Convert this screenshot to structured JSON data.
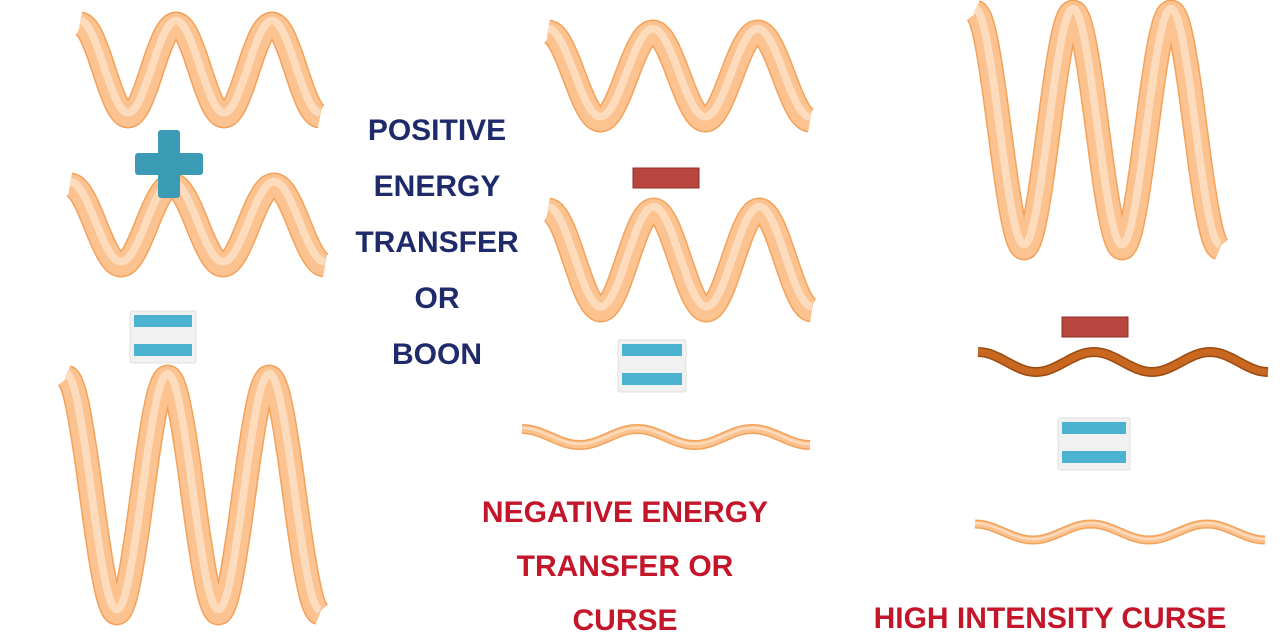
{
  "colors": {
    "wave_fill": "#fcc28f",
    "wave_light": "#fde2c9",
    "wave_edge": "#f3a25a",
    "wave_dark": "#c8671f",
    "wave_dark_edge": "#9a4a10",
    "plus": "#3b9bb5",
    "equals": "#4bb3cf",
    "minus": "#b8463f",
    "positive_text": "#1f2a6b",
    "negative_text": "#c4162a"
  },
  "labels": {
    "positive": [
      "POSITIVE",
      "ENERGY",
      "TRANSFER",
      "OR",
      "BOON"
    ],
    "negative": [
      "NEGATIVE ENERGY",
      "TRANSFER OR",
      "CURSE"
    ],
    "high": [
      "HIGH INTENSITY CURSE"
    ]
  },
  "sections": [
    {
      "name": "positive-energy-transfer",
      "operator": "plus"
    },
    {
      "name": "negative-energy-transfer",
      "operator": "minus"
    },
    {
      "name": "high-intensity-curse",
      "operator": "minus"
    }
  ]
}
